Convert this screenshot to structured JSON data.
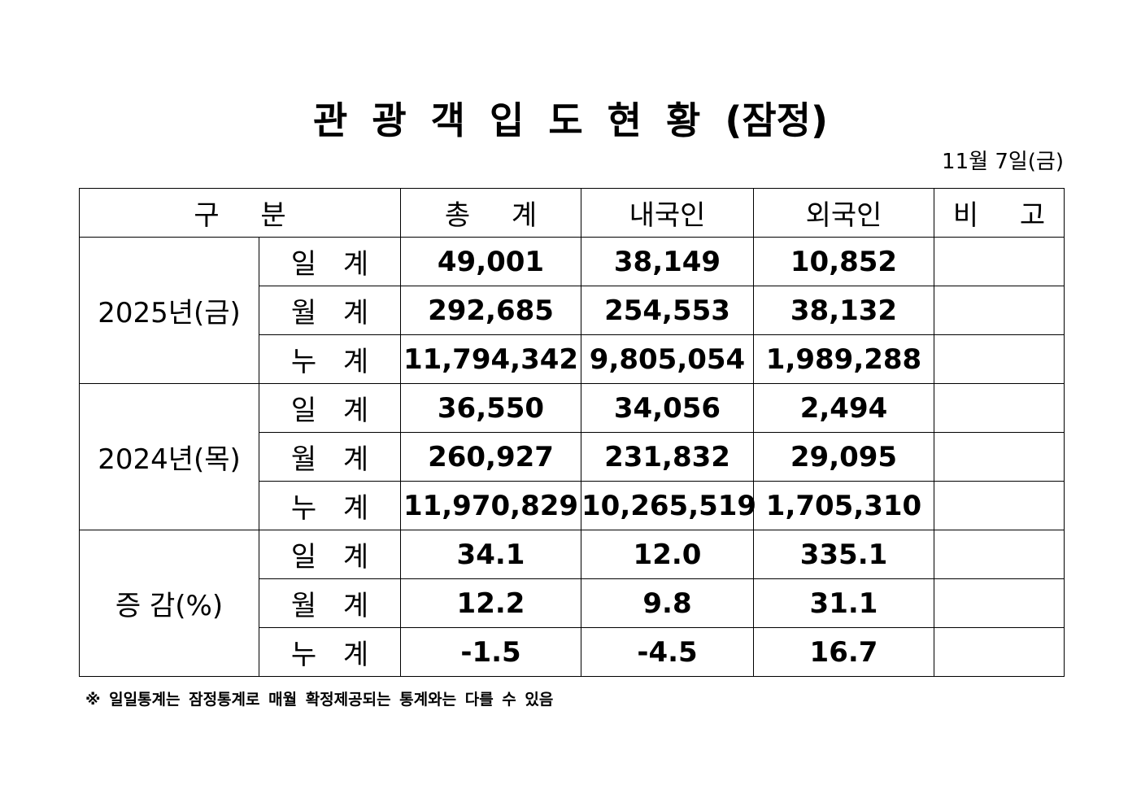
{
  "header": {
    "title": "관 광 객 입 도 현 황 (잠정)",
    "date": "11월 7일(금)"
  },
  "table": {
    "columns": [
      "구 분",
      "총 계",
      "내국인",
      "외국인",
      "비 고"
    ],
    "groups": [
      {
        "label": "2025년(금)",
        "rows": [
          {
            "label": "일 계",
            "values": [
              "49,001",
              "38,149",
              "10,852"
            ]
          },
          {
            "label": "월 계",
            "values": [
              "292,685",
              "254,553",
              "38,132"
            ]
          },
          {
            "label": "누 계",
            "values": [
              "11,794,342",
              "9,805,054",
              "1,989,288"
            ]
          }
        ]
      },
      {
        "label": "2024년(목)",
        "rows": [
          {
            "label": "일 계",
            "values": [
              "36,550",
              "34,056",
              "2,494"
            ]
          },
          {
            "label": "월 계",
            "values": [
              "260,927",
              "231,832",
              "29,095"
            ]
          },
          {
            "label": "누 계",
            "values": [
              "11,970,829",
              "10,265,519",
              "1,705,310"
            ]
          }
        ]
      },
      {
        "label": "증 감(%)",
        "rows": [
          {
            "label": "일 계",
            "values": [
              "34.1",
              "12.0",
              "335.1"
            ]
          },
          {
            "label": "월 계",
            "values": [
              "12.2",
              "9.8",
              "31.1"
            ]
          },
          {
            "label": "누 계",
            "values": [
              "-1.5",
              "-4.5",
              "16.7"
            ]
          }
        ]
      }
    ]
  },
  "footnote": "※ 일일통계는 잠정통계로 매월 확정제공되는 통계와는 다를 수 있음"
}
